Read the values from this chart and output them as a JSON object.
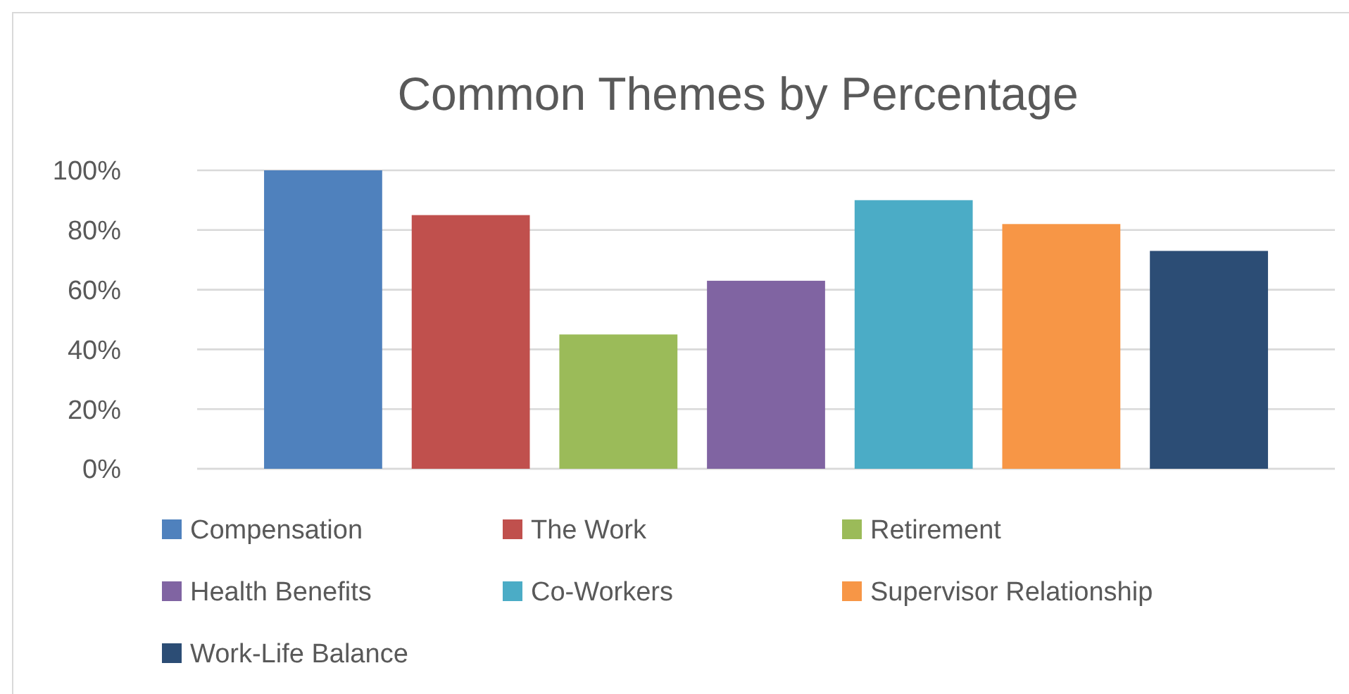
{
  "chart_data": {
    "type": "bar",
    "title": "Common Themes by Percentage",
    "categories": [
      null
    ],
    "series": [
      {
        "name": "Compensation",
        "color": "#4f81bd",
        "values": [
          100
        ]
      },
      {
        "name": "The Work",
        "color": "#c0504d",
        "values": [
          85
        ]
      },
      {
        "name": "Retirement",
        "color": "#9bbb59",
        "values": [
          45
        ]
      },
      {
        "name": "Health Benefits",
        "color": "#8064a2",
        "values": [
          63
        ]
      },
      {
        "name": "Co-Workers",
        "color": "#4bacc6",
        "values": [
          90
        ]
      },
      {
        "name": "Supervisor Relationship",
        "color": "#f79646",
        "values": [
          82
        ]
      },
      {
        "name": "Work-Life Balance",
        "color": "#2c4d75",
        "values": [
          73
        ]
      }
    ],
    "ylim": [
      0,
      100
    ],
    "yticks": [
      {
        "value": 0,
        "label": "0%"
      },
      {
        "value": 20,
        "label": "20%"
      },
      {
        "value": 40,
        "label": "40%"
      },
      {
        "value": 60,
        "label": "60%"
      },
      {
        "value": 80,
        "label": "80%"
      },
      {
        "value": 100,
        "label": "100%"
      }
    ],
    "grid": "y",
    "legend": "bottom"
  }
}
